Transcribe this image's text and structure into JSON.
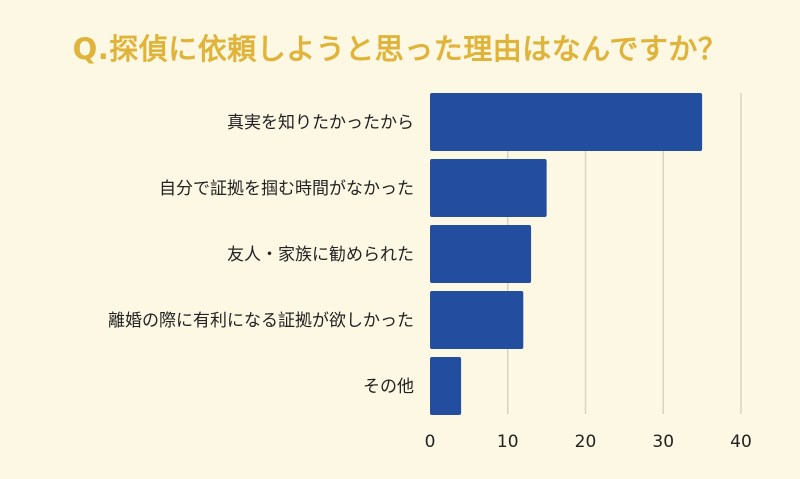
{
  "title": "Q.探偵に依頼しようと思った理由はなんですか？",
  "colors": {
    "background": "#fdf8e4",
    "title": "#e0b43a",
    "bar": "#234ea0",
    "grid": "#d9d4c2"
  },
  "chart_data": {
    "type": "bar",
    "orientation": "horizontal",
    "title": "Q.探偵に依頼しようと思った理由はなんですか？",
    "categories": [
      "真実を知りたかったから",
      "自分で証拠を掴む時間がなかった",
      "友人・家族に勧められた",
      "離婚の際に有利になる証拠が欲しかった",
      "その他"
    ],
    "values": [
      35,
      15,
      13,
      12,
      4
    ],
    "xlim": [
      0,
      40
    ],
    "xticks": [
      "0",
      "10",
      "20",
      "30",
      "40"
    ],
    "grid": true
  }
}
